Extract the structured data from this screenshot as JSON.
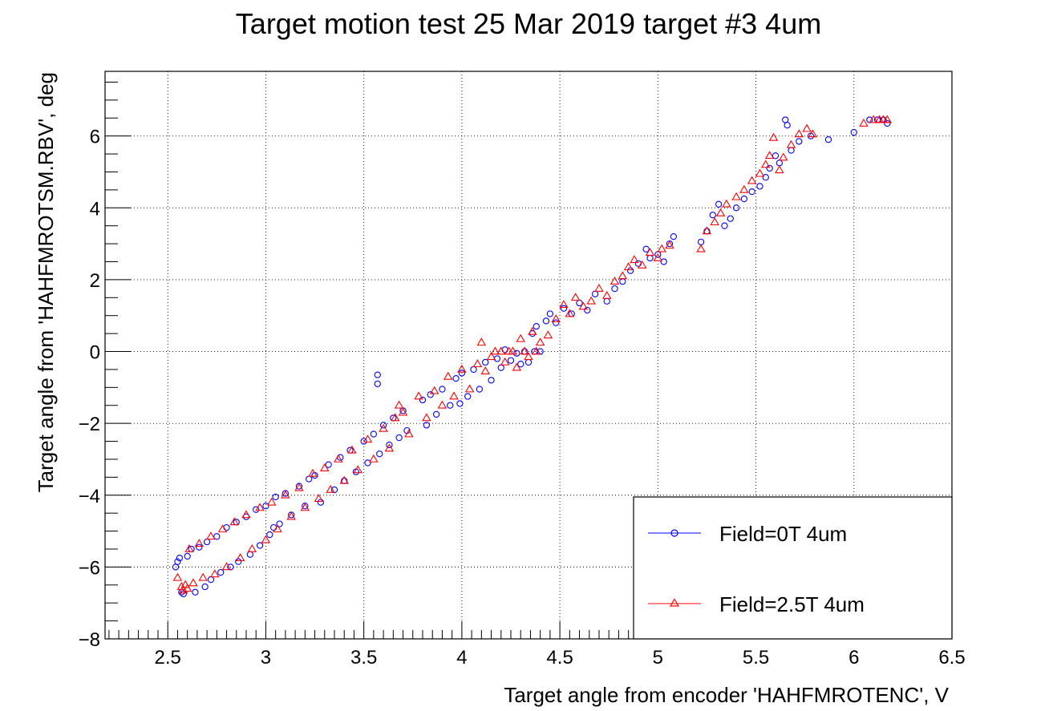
{
  "chart_data": {
    "type": "scatter",
    "title": "Target motion test 25 Mar 2019 target #3 4um",
    "xlabel": "Target angle from encoder 'HAHFMROTENC', V",
    "ylabel": "Target angle from 'HAHFMROTSM.RBV', deg",
    "xlim": [
      2.18,
      6.5
    ],
    "ylim": [
      -8.0,
      7.8
    ],
    "xticks": [
      2.5,
      3,
      3.5,
      4,
      4.5,
      5,
      5.5,
      6,
      6.5
    ],
    "xtick_labels": [
      "2.5",
      "3",
      "3.5",
      "4",
      "4.5",
      "5",
      "5.5",
      "6",
      "6.5"
    ],
    "yticks": [
      -8,
      -6,
      -4,
      -2,
      0,
      2,
      4,
      6
    ],
    "ytick_labels": [
      "−8",
      "−6",
      "−4",
      "−2",
      "0",
      "2",
      "4",
      "6"
    ],
    "grid": true,
    "legend_position": "bottom-right",
    "series": [
      {
        "name": "Field=0T 4um",
        "color": "#0000ff",
        "marker": "circle",
        "points": [
          [
            2.54,
            -6.0
          ],
          [
            2.55,
            -5.85
          ],
          [
            2.56,
            -5.75
          ],
          [
            2.57,
            -6.7
          ],
          [
            2.58,
            -6.75
          ],
          [
            2.6,
            -5.7
          ],
          [
            2.62,
            -5.5
          ],
          [
            2.64,
            -6.7
          ],
          [
            2.66,
            -5.45
          ],
          [
            2.69,
            -6.55
          ],
          [
            2.7,
            -5.3
          ],
          [
            2.72,
            -6.35
          ],
          [
            2.75,
            -5.15
          ],
          [
            2.77,
            -6.15
          ],
          [
            2.8,
            -4.9
          ],
          [
            2.82,
            -6.0
          ],
          [
            2.85,
            -4.75
          ],
          [
            2.86,
            -5.85
          ],
          [
            2.9,
            -4.6
          ],
          [
            2.92,
            -5.65
          ],
          [
            2.95,
            -4.4
          ],
          [
            2.97,
            -5.4
          ],
          [
            3.0,
            -4.3
          ],
          [
            3.02,
            -5.1
          ],
          [
            3.04,
            -4.9
          ],
          [
            3.05,
            -4.05
          ],
          [
            3.07,
            -4.8
          ],
          [
            3.1,
            -3.95
          ],
          [
            3.13,
            -4.55
          ],
          [
            3.17,
            -3.75
          ],
          [
            3.2,
            -4.3
          ],
          [
            3.22,
            -3.55
          ],
          [
            3.25,
            -3.45
          ],
          [
            3.28,
            -4.2
          ],
          [
            3.32,
            -3.15
          ],
          [
            3.35,
            -3.85
          ],
          [
            3.38,
            -2.95
          ],
          [
            3.4,
            -3.6
          ],
          [
            3.43,
            -2.75
          ],
          [
            3.46,
            -3.35
          ],
          [
            3.5,
            -2.5
          ],
          [
            3.52,
            -3.1
          ],
          [
            3.55,
            -2.3
          ],
          [
            3.57,
            -0.65
          ],
          [
            3.57,
            -0.9
          ],
          [
            3.58,
            -2.85
          ],
          [
            3.6,
            -2.05
          ],
          [
            3.63,
            -2.6
          ],
          [
            3.65,
            -1.85
          ],
          [
            3.68,
            -2.4
          ],
          [
            3.7,
            -1.65
          ],
          [
            3.72,
            -2.2
          ],
          [
            3.8,
            -1.35
          ],
          [
            3.82,
            -2.05
          ],
          [
            3.84,
            -1.2
          ],
          [
            3.87,
            -1.75
          ],
          [
            3.9,
            -1.05
          ],
          [
            3.94,
            -1.5
          ],
          [
            3.97,
            -0.75
          ],
          [
            3.99,
            -1.45
          ],
          [
            4.0,
            -0.6
          ],
          [
            4.03,
            -1.25
          ],
          [
            4.06,
            -0.5
          ],
          [
            4.09,
            -1.05
          ],
          [
            4.12,
            -0.3
          ],
          [
            4.15,
            -0.8
          ],
          [
            4.18,
            -0.2
          ],
          [
            4.2,
            -0.45
          ],
          [
            4.22,
            0.05
          ],
          [
            4.25,
            -0.25
          ],
          [
            4.28,
            -0.05
          ],
          [
            4.3,
            -0.35
          ],
          [
            4.32,
            0.0
          ],
          [
            4.34,
            -0.3
          ],
          [
            4.36,
            0.5
          ],
          [
            4.37,
            0.0
          ],
          [
            4.38,
            0.7
          ],
          [
            4.4,
            0.0
          ],
          [
            4.43,
            0.85
          ],
          [
            4.45,
            1.05
          ],
          [
            4.48,
            0.8
          ],
          [
            4.52,
            1.2
          ],
          [
            4.56,
            1.05
          ],
          [
            4.6,
            1.35
          ],
          [
            4.64,
            1.15
          ],
          [
            4.68,
            1.6
          ],
          [
            4.74,
            1.4
          ],
          [
            4.78,
            1.75
          ],
          [
            4.82,
            1.95
          ],
          [
            4.86,
            2.25
          ],
          [
            4.9,
            2.45
          ],
          [
            4.94,
            2.85
          ],
          [
            4.96,
            2.6
          ],
          [
            5.0,
            2.7
          ],
          [
            5.03,
            2.5
          ],
          [
            5.06,
            3.0
          ],
          [
            5.08,
            3.2
          ],
          [
            5.22,
            3.05
          ],
          [
            5.25,
            3.35
          ],
          [
            5.28,
            3.8
          ],
          [
            5.31,
            4.1
          ],
          [
            5.34,
            3.5
          ],
          [
            5.37,
            3.7
          ],
          [
            5.4,
            4.0
          ],
          [
            5.44,
            4.25
          ],
          [
            5.48,
            4.45
          ],
          [
            5.52,
            4.6
          ],
          [
            5.55,
            4.85
          ],
          [
            5.57,
            5.1
          ],
          [
            5.6,
            5.45
          ],
          [
            5.62,
            5.25
          ],
          [
            5.65,
            6.45
          ],
          [
            5.66,
            6.3
          ],
          [
            5.68,
            5.6
          ],
          [
            5.72,
            5.85
          ],
          [
            5.78,
            6.0
          ],
          [
            5.87,
            5.9
          ],
          [
            6.0,
            6.1
          ],
          [
            6.08,
            6.45
          ],
          [
            6.12,
            6.45
          ],
          [
            6.15,
            6.45
          ],
          [
            6.17,
            6.35
          ]
        ]
      },
      {
        "name": "Field=2.5T 4um",
        "color": "#ff0000",
        "marker": "triangle",
        "points": [
          [
            2.55,
            -6.3
          ],
          [
            2.57,
            -6.55
          ],
          [
            2.58,
            -6.65
          ],
          [
            2.59,
            -6.5
          ],
          [
            2.6,
            -6.6
          ],
          [
            2.61,
            -5.5
          ],
          [
            2.63,
            -6.45
          ],
          [
            2.66,
            -5.35
          ],
          [
            2.68,
            -6.3
          ],
          [
            2.72,
            -5.15
          ],
          [
            2.74,
            -6.2
          ],
          [
            2.78,
            -4.95
          ],
          [
            2.8,
            -6.0
          ],
          [
            2.84,
            -4.75
          ],
          [
            2.87,
            -5.75
          ],
          [
            2.9,
            -4.55
          ],
          [
            2.93,
            -5.5
          ],
          [
            2.97,
            -4.35
          ],
          [
            3.0,
            -5.25
          ],
          [
            3.03,
            -4.2
          ],
          [
            3.06,
            -4.95
          ],
          [
            3.1,
            -4.0
          ],
          [
            3.13,
            -4.6
          ],
          [
            3.17,
            -3.8
          ],
          [
            3.2,
            -4.35
          ],
          [
            3.24,
            -3.4
          ],
          [
            3.27,
            -4.1
          ],
          [
            3.3,
            -3.25
          ],
          [
            3.33,
            -3.85
          ],
          [
            3.37,
            -3.0
          ],
          [
            3.4,
            -3.6
          ],
          [
            3.44,
            -2.75
          ],
          [
            3.47,
            -3.3
          ],
          [
            3.52,
            -2.45
          ],
          [
            3.55,
            -3.0
          ],
          [
            3.6,
            -2.15
          ],
          [
            3.63,
            -2.7
          ],
          [
            3.66,
            -1.85
          ],
          [
            3.68,
            -1.5
          ],
          [
            3.7,
            -1.7
          ],
          [
            3.73,
            -2.3
          ],
          [
            3.78,
            -1.25
          ],
          [
            3.82,
            -1.85
          ],
          [
            3.86,
            -1.1
          ],
          [
            3.9,
            -1.5
          ],
          [
            3.93,
            -0.7
          ],
          [
            3.96,
            -1.25
          ],
          [
            4.0,
            -0.5
          ],
          [
            4.04,
            -1.05
          ],
          [
            4.08,
            -0.35
          ],
          [
            4.1,
            0.25
          ],
          [
            4.12,
            -0.55
          ],
          [
            4.15,
            -0.15
          ],
          [
            4.17,
            0.0
          ],
          [
            4.2,
            0.0
          ],
          [
            4.22,
            -0.3
          ],
          [
            4.24,
            0.0
          ],
          [
            4.26,
            0.0
          ],
          [
            4.28,
            -0.45
          ],
          [
            4.3,
            0.35
          ],
          [
            4.32,
            0.0
          ],
          [
            4.34,
            -0.15
          ],
          [
            4.36,
            0.55
          ],
          [
            4.38,
            0.0
          ],
          [
            4.4,
            0.25
          ],
          [
            4.44,
            0.45
          ],
          [
            4.48,
            0.9
          ],
          [
            4.52,
            1.3
          ],
          [
            4.55,
            1.05
          ],
          [
            4.58,
            1.5
          ],
          [
            4.62,
            1.25
          ],
          [
            4.66,
            1.4
          ],
          [
            4.7,
            1.75
          ],
          [
            4.74,
            1.55
          ],
          [
            4.78,
            1.95
          ],
          [
            4.82,
            2.1
          ],
          [
            4.85,
            2.35
          ],
          [
            4.88,
            2.55
          ],
          [
            4.92,
            2.4
          ],
          [
            4.96,
            2.75
          ],
          [
            5.0,
            2.6
          ],
          [
            5.02,
            2.85
          ],
          [
            5.06,
            2.95
          ],
          [
            5.22,
            2.85
          ],
          [
            5.25,
            3.35
          ],
          [
            5.29,
            3.6
          ],
          [
            5.32,
            3.85
          ],
          [
            5.35,
            4.1
          ],
          [
            5.4,
            4.3
          ],
          [
            5.44,
            4.5
          ],
          [
            5.48,
            4.75
          ],
          [
            5.52,
            4.95
          ],
          [
            5.55,
            5.2
          ],
          [
            5.57,
            5.45
          ],
          [
            5.59,
            5.95
          ],
          [
            5.62,
            5.05
          ],
          [
            5.64,
            5.4
          ],
          [
            5.68,
            5.75
          ],
          [
            5.72,
            6.05
          ],
          [
            5.76,
            6.2
          ],
          [
            5.79,
            6.05
          ],
          [
            6.05,
            6.35
          ],
          [
            6.1,
            6.45
          ],
          [
            6.13,
            6.45
          ],
          [
            6.15,
            6.45
          ],
          [
            6.17,
            6.45
          ]
        ]
      }
    ]
  }
}
